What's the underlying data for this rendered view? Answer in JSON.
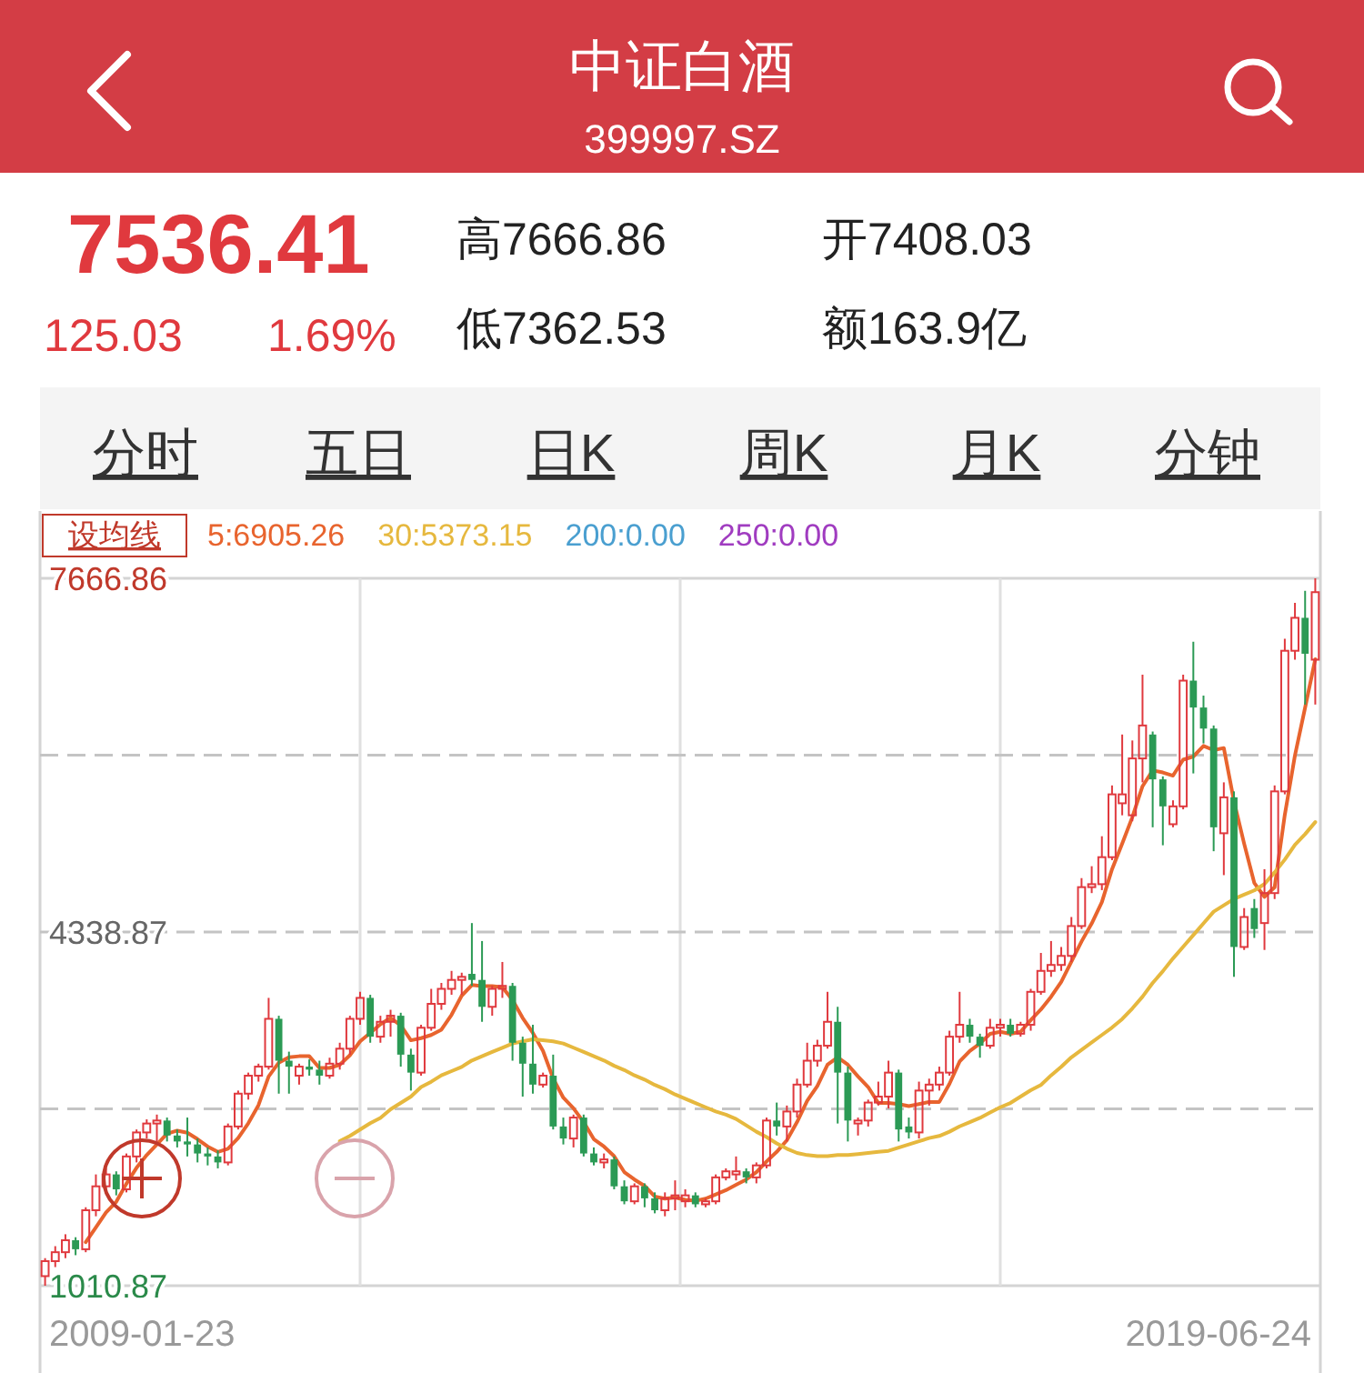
{
  "chart_data": {
    "type": "candlestick",
    "title": "中证白酒",
    "subtitle": "399997.SZ",
    "annotations": [
      "7536.41",
      "125.03",
      "1.69%",
      "高7666.86",
      "低7362.53",
      "开7408.03",
      "额163.9亿",
      "分时",
      "五日",
      "日K",
      "周K",
      "月K",
      "分钟",
      "设均线",
      "2009-01-23",
      "2019-06-24"
    ],
    "categories": [
      null,
      null,
      null,
      null,
      null,
      null,
      null,
      null,
      null,
      null,
      null,
      null,
      null,
      null,
      null,
      null,
      null,
      null,
      null,
      null,
      null,
      null,
      null,
      null,
      null,
      null,
      null,
      null,
      null,
      null,
      null,
      null,
      null,
      null,
      null,
      null,
      null,
      null,
      null,
      null,
      null,
      null,
      null,
      null,
      null,
      null,
      null,
      null,
      null,
      null,
      null,
      null,
      null,
      null,
      null,
      null,
      null,
      null,
      null,
      null,
      null,
      null,
      null,
      null,
      null,
      null,
      null,
      null,
      null,
      null,
      null,
      null,
      null,
      null,
      null,
      null,
      null,
      null,
      null,
      null,
      null,
      null,
      null,
      null,
      null,
      null,
      null,
      null,
      null,
      null,
      null,
      null,
      null,
      null,
      null,
      null,
      null,
      null,
      null,
      null,
      null,
      null,
      null,
      null,
      null,
      null,
      null,
      null,
      null,
      null,
      null,
      null,
      null,
      null,
      null,
      null,
      null,
      null,
      null,
      null,
      null,
      null,
      null,
      null,
      null,
      null
    ],
    "ohlc": [
      [
        1101,
        1270,
        1010.87,
        1242
      ],
      [
        1242,
        1383,
        1186,
        1326
      ],
      [
        1326,
        1495,
        1270,
        1439
      ],
      [
        1439,
        1467,
        1298,
        1354
      ],
      [
        1354,
        1749,
        1326,
        1721
      ],
      [
        1721,
        2058,
        1664,
        1946
      ],
      [
        1946,
        2115,
        1889,
        2058
      ],
      [
        2058,
        2087,
        1861,
        1918
      ],
      [
        1918,
        2255,
        1889,
        2227
      ],
      [
        2227,
        2481,
        2171,
        2453
      ],
      [
        2453,
        2576,
        2396,
        2537
      ],
      [
        2537,
        2621,
        2368,
        2565
      ],
      [
        2565,
        2593,
        2368,
        2424
      ],
      [
        2424,
        2481,
        2312,
        2368
      ],
      [
        2368,
        2593,
        2227,
        2340
      ],
      [
        2340,
        2396,
        2171,
        2255
      ],
      [
        2255,
        2312,
        2143,
        2227
      ],
      [
        2227,
        2284,
        2115,
        2171
      ],
      [
        2171,
        2537,
        2143,
        2509
      ],
      [
        2509,
        2847,
        2481,
        2818
      ],
      [
        2818,
        3016,
        2762,
        2987
      ],
      [
        2987,
        3100,
        2931,
        3072
      ],
      [
        3072,
        3719,
        3044,
        3522
      ],
      [
        3522,
        3551,
        2818,
        3128
      ],
      [
        3128,
        3213,
        2818,
        3072
      ],
      [
        2987,
        3100,
        2903,
        3072
      ],
      [
        3072,
        3140,
        2987,
        3044
      ],
      [
        3044,
        3128,
        2903,
        2987
      ],
      [
        2987,
        3156,
        2959,
        3100
      ],
      [
        3100,
        3297,
        3044,
        3241
      ],
      [
        3241,
        3551,
        3185,
        3522
      ],
      [
        3522,
        3776,
        3466,
        3719
      ],
      [
        3719,
        3748,
        3297,
        3354
      ],
      [
        3354,
        3551,
        3297,
        3494
      ],
      [
        3494,
        3607,
        3354,
        3551
      ],
      [
        3551,
        3579,
        3072,
        3185
      ],
      [
        3185,
        3241,
        2847,
        3016
      ],
      [
        3016,
        3466,
        2987,
        3438
      ],
      [
        3438,
        3804,
        3410,
        3663
      ],
      [
        3663,
        3860,
        3607,
        3804
      ],
      [
        3804,
        3973,
        3748,
        3888
      ],
      [
        3888,
        3956,
        3748,
        3917
      ],
      [
        3945,
        4423,
        3832,
        3888
      ],
      [
        3888,
        4254,
        3494,
        3635
      ],
      [
        3635,
        3832,
        3551,
        3804
      ],
      [
        3804,
        4057,
        3719,
        3832
      ],
      [
        3832,
        3860,
        3128,
        3297
      ],
      [
        3297,
        3354,
        2790,
        3100
      ],
      [
        3100,
        3466,
        2818,
        2903
      ],
      [
        2903,
        3016,
        2875,
        2987
      ],
      [
        2987,
        3185,
        2481,
        2509
      ],
      [
        2509,
        2593,
        2340,
        2396
      ],
      [
        2396,
        2621,
        2312,
        2593
      ],
      [
        2593,
        2621,
        2227,
        2255
      ],
      [
        2255,
        2312,
        2143,
        2171
      ],
      [
        2171,
        2255,
        2115,
        2199
      ],
      [
        2199,
        2227,
        1918,
        1946
      ],
      [
        1946,
        2002,
        1777,
        1805
      ],
      [
        1805,
        1974,
        1777,
        1946
      ],
      [
        1946,
        1974,
        1749,
        1833
      ],
      [
        1833,
        1889,
        1692,
        1721
      ],
      [
        1721,
        1889,
        1664,
        1833
      ],
      [
        1833,
        2002,
        1721,
        1861
      ],
      [
        1805,
        1918,
        1749,
        1861
      ],
      [
        1861,
        1889,
        1749,
        1777
      ],
      [
        1777,
        1833,
        1749,
        1805
      ],
      [
        1805,
        2058,
        1777,
        2030
      ],
      [
        2030,
        2115,
        2002,
        2087
      ],
      [
        2058,
        2227,
        2002,
        2087
      ],
      [
        2087,
        2115,
        1974,
        2030
      ],
      [
        2030,
        2171,
        1974,
        2143
      ],
      [
        2143,
        2593,
        2115,
        2565
      ],
      [
        2565,
        2734,
        2424,
        2509
      ],
      [
        2509,
        2706,
        2368,
        2650
      ],
      [
        2650,
        2959,
        2593,
        2903
      ],
      [
        2903,
        3297,
        2875,
        3128
      ],
      [
        3128,
        3325,
        3072,
        3269
      ],
      [
        3269,
        3776,
        3241,
        3494
      ],
      [
        3494,
        3635,
        2537,
        3016
      ],
      [
        3016,
        3072,
        2368,
        2565
      ],
      [
        2537,
        2593,
        2424,
        2565
      ],
      [
        2565,
        2762,
        2509,
        2734
      ],
      [
        2734,
        2931,
        2706,
        2790
      ],
      [
        2790,
        3128,
        2678,
        3016
      ],
      [
        3016,
        3044,
        2368,
        2481
      ],
      [
        2509,
        2593,
        2396,
        2453
      ],
      [
        2453,
        2931,
        2396,
        2847
      ],
      [
        2847,
        2959,
        2706,
        2903
      ],
      [
        2903,
        3072,
        2847,
        3016
      ],
      [
        3016,
        3410,
        2987,
        3354
      ],
      [
        3354,
        3776,
        3297,
        3466
      ],
      [
        3466,
        3522,
        3297,
        3354
      ],
      [
        3354,
        3382,
        3156,
        3269
      ],
      [
        3269,
        3522,
        3241,
        3438
      ],
      [
        3438,
        3522,
        3354,
        3466
      ],
      [
        3466,
        3522,
        3354,
        3382
      ],
      [
        3382,
        3494,
        3354,
        3466
      ],
      [
        3466,
        3804,
        3410,
        3776
      ],
      [
        3776,
        4142,
        3748,
        3973
      ],
      [
        3973,
        4254,
        3917,
        4029
      ],
      [
        4029,
        4198,
        3973,
        4114
      ],
      [
        4114,
        4480,
        4057,
        4395
      ],
      [
        4395,
        4846,
        4367,
        4761
      ],
      [
        4761,
        4958,
        4705,
        4789
      ],
      [
        4789,
        5240,
        4733,
        5043
      ],
      [
        5043,
        5718,
        5015,
        5634
      ],
      [
        5550,
        6197,
        5437,
        5634
      ],
      [
        5437,
        6141,
        5381,
        5972
      ],
      [
        5972,
        6760,
        5747,
        6282
      ],
      [
        6197,
        6225,
        5324,
        5775
      ],
      [
        5775,
        5803,
        5155,
        5521
      ],
      [
        5353,
        5578,
        5324,
        5521
      ],
      [
        5521,
        6760,
        5493,
        6704
      ],
      [
        6704,
        7070,
        5831,
        6451
      ],
      [
        6451,
        6563,
        6113,
        6253
      ],
      [
        6253,
        6282,
        5099,
        5324
      ],
      [
        5268,
        5747,
        4874,
        5606
      ],
      [
        5606,
        5662,
        3917,
        4198
      ],
      [
        4198,
        4564,
        4170,
        4480
      ],
      [
        4564,
        4649,
        4283,
        4367
      ],
      [
        4423,
        4930,
        4170,
        4705
      ],
      [
        4705,
        5718,
        4649,
        5662
      ],
      [
        5662,
        7098,
        5634,
        6985
      ],
      [
        6985,
        7436,
        6901,
        7295
      ],
      [
        7295,
        7549,
        6479,
        6957
      ],
      [
        6901,
        7666.86,
        6479,
        7536.41
      ]
    ],
    "colors": [
      "#e0393e",
      "#e0393e",
      "#e0393e",
      "#2b9a55",
      "#e0393e",
      "#e0393e",
      "#e0393e",
      "#2b9a55",
      "#e0393e",
      "#e0393e",
      "#e0393e",
      "#e0393e",
      "#2b9a55",
      "#2b9a55",
      "#2b9a55",
      "#2b9a55",
      "#2b9a55",
      "#2b9a55",
      "#e0393e",
      "#e0393e",
      "#e0393e",
      "#e0393e",
      "#e0393e",
      "#2b9a55",
      "#2b9a55",
      "#e0393e",
      "#2b9a55",
      "#2b9a55",
      "#e0393e",
      "#e0393e",
      "#e0393e",
      "#e0393e",
      "#2b9a55",
      "#e0393e",
      "#e0393e",
      "#2b9a55",
      "#2b9a55",
      "#e0393e",
      "#e0393e",
      "#e0393e",
      "#e0393e",
      "#e0393e",
      "#2b9a55",
      "#2b9a55",
      "#e0393e",
      "#e0393e",
      "#2b9a55",
      "#2b9a55",
      "#2b9a55",
      "#e0393e",
      "#2b9a55",
      "#2b9a55",
      "#e0393e",
      "#2b9a55",
      "#2b9a55",
      "#e0393e",
      "#2b9a55",
      "#2b9a55",
      "#e0393e",
      "#2b9a55",
      "#2b9a55",
      "#e0393e",
      "#e0393e",
      "#e0393e",
      "#2b9a55",
      "#e0393e",
      "#e0393e",
      "#e0393e",
      "#e0393e",
      "#2b9a55",
      "#e0393e",
      "#e0393e",
      "#2b9a55",
      "#e0393e",
      "#e0393e",
      "#e0393e",
      "#e0393e",
      "#e0393e",
      "#2b9a55",
      "#2b9a55",
      "#e0393e",
      "#e0393e",
      "#e0393e",
      "#e0393e",
      "#2b9a55",
      "#2b9a55",
      "#e0393e",
      "#e0393e",
      "#e0393e",
      "#e0393e",
      "#e0393e",
      "#2b9a55",
      "#2b9a55",
      "#e0393e",
      "#e0393e",
      "#2b9a55",
      "#e0393e",
      "#e0393e",
      "#e0393e",
      "#e0393e",
      "#e0393e",
      "#e0393e",
      "#e0393e",
      "#e0393e",
      "#e0393e",
      "#e0393e",
      "#e0393e",
      "#e0393e",
      "#e0393e",
      "#2b9a55",
      "#2b9a55",
      "#e0393e",
      "#e0393e",
      "#2b9a55",
      "#2b9a55",
      "#2b9a55",
      "#e0393e",
      "#2b9a55",
      "#e0393e",
      "#2b9a55",
      "#e0393e",
      "#e0393e",
      "#e0393e",
      "#e0393e",
      "#2b9a55",
      "#e0393e"
    ],
    "series": [
      {
        "name": "5:6905.26",
        "type": "line",
        "color": "#e8642e",
        "values": [
          null,
          null,
          null,
          null,
          1420,
          1560,
          1700,
          1800,
          1970,
          2120,
          2240,
          2340,
          2440,
          2470,
          2450,
          2390,
          2320,
          2270,
          2300,
          2400,
          2540,
          2710,
          2980,
          3110,
          3160,
          3170,
          3170,
          3060,
          3060,
          3090,
          3180,
          3310,
          3390,
          3470,
          3530,
          3460,
          3320,
          3340,
          3370,
          3420,
          3560,
          3740,
          3840,
          3830,
          3830,
          3820,
          3700,
          3530,
          3390,
          3220,
          2960,
          2780,
          2680,
          2550,
          2390,
          2320,
          2230,
          2080,
          2010,
          1950,
          1850,
          1830,
          1840,
          1820,
          1810,
          1830,
          1870,
          1910,
          1960,
          2010,
          2080,
          2180,
          2270,
          2380,
          2550,
          2750,
          2890,
          3090,
          3160,
          3090,
          2980,
          2880,
          2730,
          2730,
          2720,
          2700,
          2720,
          2740,
          2740,
          2910,
          3120,
          3220,
          3290,
          3380,
          3400,
          3380,
          3400,
          3510,
          3610,
          3730,
          3870,
          4060,
          4250,
          4420,
          4620,
          4930,
          5170,
          5420,
          5710,
          5860,
          5840,
          5810,
          5960,
          5990,
          6090,
          6050,
          6070,
          5570,
          5170,
          4800,
          4670,
          4760,
          5440,
          6000,
          6450,
          6905.26
        ]
      },
      {
        "name": "30:5373.15",
        "type": "line",
        "color": "#e6b83e",
        "values": [
          null,
          null,
          null,
          null,
          null,
          null,
          null,
          null,
          null,
          null,
          null,
          null,
          null,
          null,
          null,
          null,
          null,
          null,
          null,
          null,
          null,
          null,
          null,
          null,
          null,
          null,
          null,
          null,
          null,
          2370,
          2420,
          2480,
          2540,
          2590,
          2670,
          2730,
          2790,
          2880,
          2930,
          2990,
          3030,
          3070,
          3130,
          3170,
          3210,
          3250,
          3290,
          3310,
          3330,
          3320,
          3310,
          3290,
          3250,
          3210,
          3170,
          3130,
          3080,
          3040,
          2990,
          2950,
          2900,
          2860,
          2810,
          2770,
          2730,
          2690,
          2650,
          2620,
          2580,
          2520,
          2460,
          2410,
          2350,
          2300,
          2260,
          2240,
          2230,
          2230,
          2240,
          2240,
          2250,
          2260,
          2270,
          2280,
          2310,
          2340,
          2370,
          2400,
          2420,
          2460,
          2510,
          2550,
          2590,
          2640,
          2690,
          2730,
          2790,
          2850,
          2900,
          2990,
          3070,
          3160,
          3230,
          3300,
          3370,
          3440,
          3520,
          3620,
          3730,
          3860,
          3970,
          4090,
          4200,
          4310,
          4420,
          4530,
          4590,
          4650,
          4690,
          4730,
          4790,
          4900,
          5020,
          5160,
          5260,
          5373.15
        ]
      },
      {
        "name": "200:0.00",
        "type": "line",
        "color": "#4a9fd0",
        "values": [
          null,
          null,
          null,
          null,
          null,
          null,
          null,
          null,
          null,
          null,
          null,
          null,
          null,
          null,
          null,
          null,
          null,
          null,
          null,
          null,
          null,
          null,
          null,
          null,
          null,
          null,
          null,
          null,
          null,
          null,
          null,
          null,
          null,
          null,
          null,
          null,
          null,
          null,
          null,
          null,
          null,
          null,
          null,
          null,
          null,
          null,
          null,
          null,
          null,
          null,
          null,
          null,
          null,
          null,
          null,
          null,
          null,
          null,
          null,
          null,
          null,
          null,
          null,
          null,
          null,
          null,
          null,
          null,
          null,
          null,
          null,
          null,
          null,
          null,
          null,
          null,
          null,
          null,
          null,
          null,
          null,
          null,
          null,
          null,
          null,
          null,
          null,
          null,
          null,
          null,
          null,
          null,
          null,
          null,
          null,
          null,
          null,
          null,
          null,
          null,
          null,
          null,
          null,
          null,
          null,
          null,
          null,
          null,
          null,
          null,
          null,
          null,
          null,
          null,
          null,
          null,
          null,
          null,
          null,
          null,
          null,
          null,
          null,
          null,
          null,
          null
        ]
      },
      {
        "name": "250:0.00",
        "type": "line",
        "color": "#a03cc0",
        "values": [
          null,
          null,
          null,
          null,
          null,
          null,
          null,
          null,
          null,
          null,
          null,
          null,
          null,
          null,
          null,
          null,
          null,
          null,
          null,
          null,
          null,
          null,
          null,
          null,
          null,
          null,
          null,
          null,
          null,
          null,
          null,
          null,
          null,
          null,
          null,
          null,
          null,
          null,
          null,
          null,
          null,
          null,
          null,
          null,
          null,
          null,
          null,
          null,
          null,
          null,
          null,
          null,
          null,
          null,
          null,
          null,
          null,
          null,
          null,
          null,
          null,
          null,
          null,
          null,
          null,
          null,
          null,
          null,
          null,
          null,
          null,
          null,
          null,
          null,
          null,
          null,
          null,
          null,
          null,
          null,
          null,
          null,
          null,
          null,
          null,
          null,
          null,
          null,
          null,
          null,
          null,
          null,
          null,
          null,
          null,
          null,
          null,
          null,
          null,
          null,
          null,
          null,
          null,
          null,
          null,
          null,
          null,
          null,
          null,
          null,
          null,
          null,
          null,
          null,
          null,
          null,
          null,
          null,
          null,
          null,
          null,
          null,
          null,
          null,
          null,
          null
        ]
      }
    ],
    "ylim": [
      1010.87,
      7666.86
    ],
    "yticks": [
      1010.87,
      {
        "value": 2674.87,
        "label": null
      },
      4338.87,
      {
        "value": 6002.86,
        "label": null
      },
      7666.86
    ],
    "grid": true,
    "legend": "top"
  }
}
